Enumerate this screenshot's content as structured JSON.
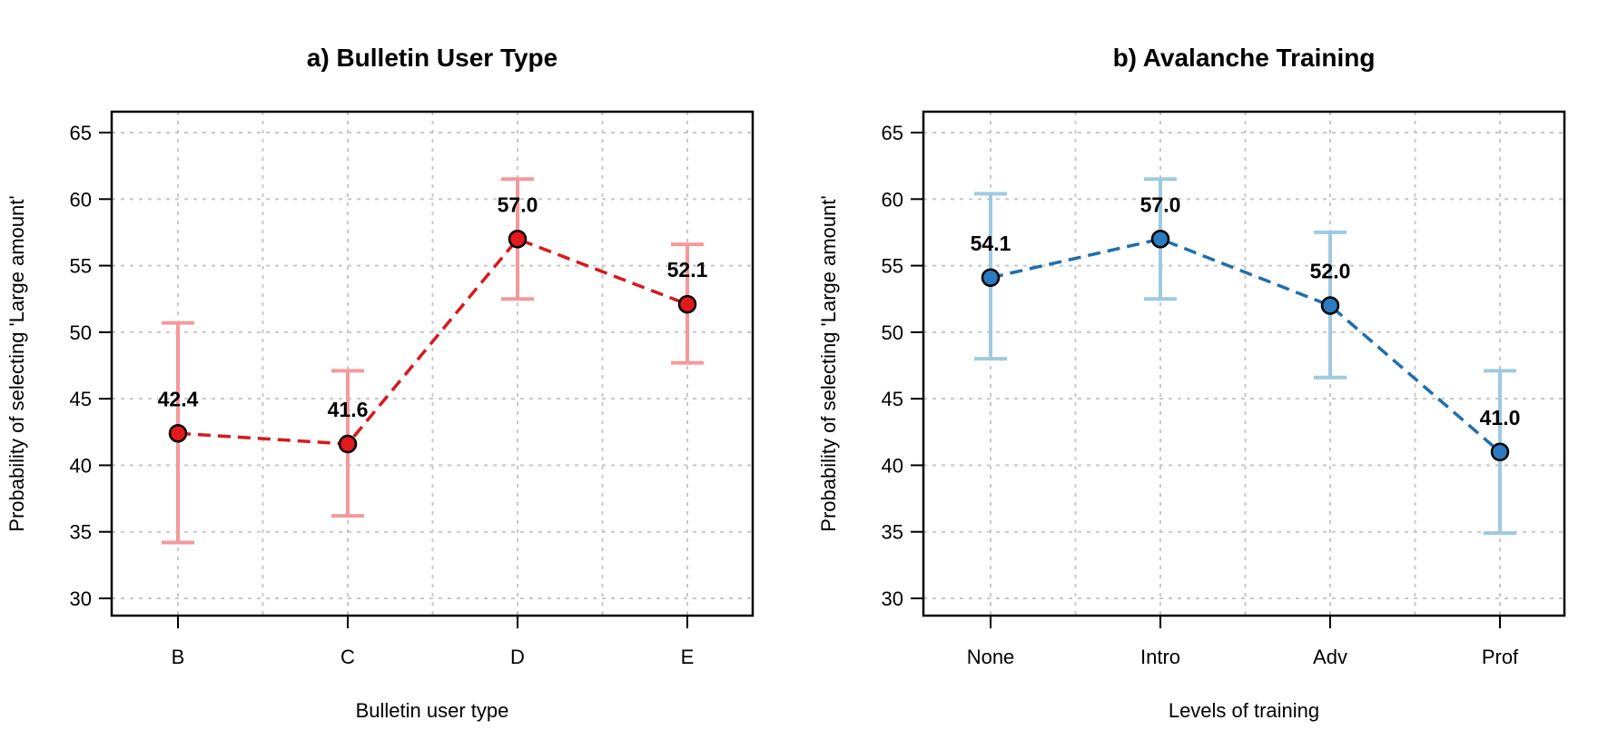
{
  "chart_data": [
    {
      "type": "line",
      "title": "a) Bulletin User Type",
      "xlabel": "Bulletin user type",
      "ylabel": "Probability of selecting 'Large amount'",
      "categories": [
        "B",
        "C",
        "D",
        "E"
      ],
      "values": [
        42.4,
        41.6,
        57.0,
        52.1
      ],
      "data_labels": [
        "42.4",
        "41.6",
        "57.0",
        "52.1"
      ],
      "error_low": [
        34.2,
        36.2,
        52.5,
        47.7
      ],
      "error_high": [
        50.7,
        47.1,
        61.5,
        56.6
      ],
      "ylim": [
        30,
        65
      ],
      "yticks": [
        30,
        35,
        40,
        45,
        50,
        55,
        60,
        65
      ],
      "grid": true,
      "line_color": "#d7191c",
      "point_color": "#e31a1c",
      "errorbar_color": "#f4999b"
    },
    {
      "type": "line",
      "title": "b) Avalanche Training",
      "xlabel": "Levels of training",
      "ylabel": "Probability of selecting 'Large amount'",
      "categories": [
        "None",
        "Intro",
        "Adv",
        "Prof"
      ],
      "values": [
        54.1,
        57.0,
        52.0,
        41.0
      ],
      "data_labels": [
        "54.1",
        "57.0",
        "52.0",
        "41.0"
      ],
      "error_low": [
        48.0,
        52.5,
        46.6,
        34.9
      ],
      "error_high": [
        60.4,
        61.5,
        57.5,
        47.1
      ],
      "ylim": [
        30,
        65
      ],
      "yticks": [
        30,
        35,
        40,
        45,
        50,
        55,
        60,
        65
      ],
      "grid": true,
      "line_color": "#1f6fae",
      "point_color": "#2a7bbf",
      "errorbar_color": "#9ecae1"
    }
  ]
}
